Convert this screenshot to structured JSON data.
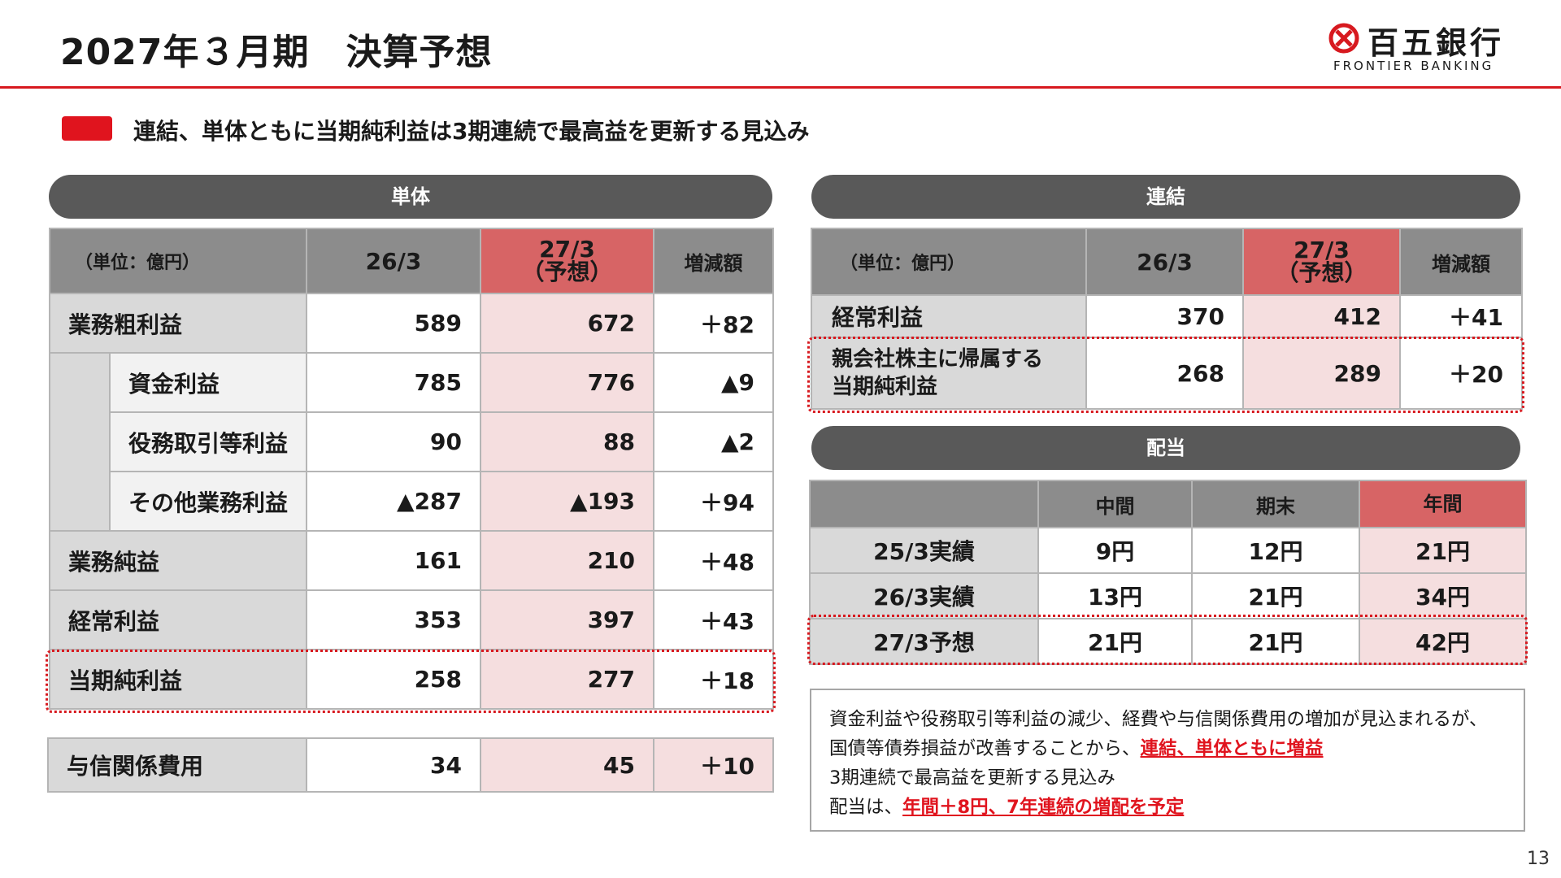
{
  "header": {
    "title": "2027年３月期　決算予想",
    "logo_text": "百五銀行",
    "logo_sub": "FRONTIER BANKING"
  },
  "subtitle": "連結、単体ともに当期純利益は3期連続で最高益を更新する見込み",
  "tantai": {
    "pill": "単体",
    "unit": "（単位：億円）",
    "col1": "26/3",
    "col2_line1": "27/3",
    "col2_line2": "（予想）",
    "col3": "増減額",
    "rows": [
      {
        "label": "業務粗利益",
        "v1": "589",
        "v2": "672",
        "diff": "＋82"
      },
      {
        "label": "資金利益",
        "v1": "785",
        "v2": "776",
        "diff": "▲9"
      },
      {
        "label": "役務取引等利益",
        "v1": "90",
        "v2": "88",
        "diff": "▲2"
      },
      {
        "label": "その他業務利益",
        "v1": "▲287",
        "v2": "▲193",
        "diff": "＋94"
      },
      {
        "label": "業務純益",
        "v1": "161",
        "v2": "210",
        "diff": "＋48"
      },
      {
        "label": "経常利益",
        "v1": "353",
        "v2": "397",
        "diff": "＋43"
      },
      {
        "label": "当期純利益",
        "v1": "258",
        "v2": "277",
        "diff": "＋18"
      }
    ],
    "credit": {
      "label": "与信関係費用",
      "v1": "34",
      "v2": "45",
      "diff": "＋10"
    }
  },
  "renketsu": {
    "pill": "連結",
    "unit": "（単位：億円）",
    "col1": "26/3",
    "col2_line1": "27/3",
    "col2_line2": "（予想）",
    "col3": "増減額",
    "rows": [
      {
        "label": "経常利益",
        "v1": "370",
        "v2": "412",
        "diff": "＋41"
      },
      {
        "label_line1": "親会社株主に帰属する",
        "label_line2": "当期純利益",
        "v1": "268",
        "v2": "289",
        "diff": "＋20"
      }
    ]
  },
  "dividend": {
    "pill": "配当",
    "col1": "中間",
    "col2": "期末",
    "col3": "年間",
    "rows": [
      {
        "label": "25/3実績",
        "c1": "9円",
        "c2": "12円",
        "c3": "21円"
      },
      {
        "label": "26/3実績",
        "c1": "13円",
        "c2": "21円",
        "c3": "34円"
      },
      {
        "label": "27/3予想",
        "c1": "21円",
        "c2": "21円",
        "c3": "42円"
      }
    ]
  },
  "note": {
    "p1": "資金利益や役務取引等利益の減少、経費や与信関係費用の増加が見込まれるが、国債等債券損益が改善することから、",
    "p1_hl": "連結、単体ともに増益",
    "p2": "3期連続で最高益を更新する見込み",
    "p3": "配当は、",
    "p3_hl": "年間＋8円、7年連続の増配を予定"
  },
  "page_number": "13",
  "colors": {
    "accent": "#d7191f",
    "header_gray": "#8c8c8c",
    "header_red": "#d76465",
    "pink": "#f5dedf",
    "pill": "#595959"
  }
}
